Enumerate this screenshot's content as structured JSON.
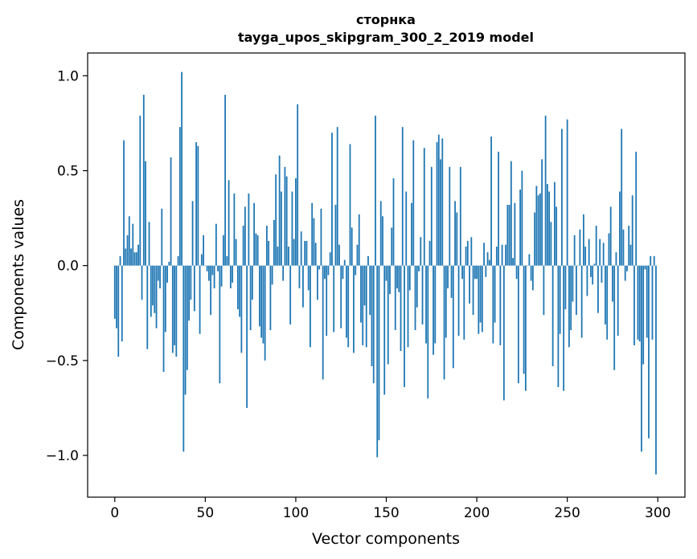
{
  "chart_data": {
    "type": "bar",
    "title_lines": [
      "сторнка",
      "tayga_upos_skipgram_300_2_2019 model"
    ],
    "xlabel": "Vector components",
    "ylabel": "Components values",
    "xlim": [
      -15,
      315
    ],
    "ylim": [
      -1.22,
      1.12
    ],
    "xticks": [
      0,
      50,
      100,
      150,
      200,
      250,
      300
    ],
    "xtick_labels": [
      "0",
      "50",
      "100",
      "150",
      "200",
      "250",
      "300"
    ],
    "yticks": [
      1.0,
      0.5,
      0.0,
      -0.5,
      -1.0
    ],
    "ytick_labels": [
      "1.0",
      "0.5",
      "0.0",
      "−0.5",
      "−1.0"
    ],
    "bar_color": "#1f77b4",
    "values": [
      -0.28,
      -0.33,
      -0.48,
      0.05,
      -0.4,
      0.66,
      0.09,
      0.16,
      0.26,
      0.09,
      0.22,
      0.07,
      0.07,
      0.11,
      0.79,
      -0.18,
      0.9,
      0.55,
      -0.44,
      0.23,
      -0.27,
      -0.21,
      -0.25,
      -0.33,
      -0.08,
      -0.12,
      0.3,
      -0.56,
      -0.35,
      -0.09,
      0.02,
      0.57,
      -0.46,
      -0.42,
      -0.48,
      0.05,
      0.73,
      1.02,
      -0.98,
      -0.68,
      -0.55,
      -0.29,
      -0.18,
      0.34,
      -0.24,
      0.65,
      0.63,
      -0.36,
      0.06,
      0.16,
      0.0,
      -0.03,
      -0.08,
      -0.26,
      -0.05,
      -0.12,
      0.22,
      -0.03,
      -0.62,
      -0.11,
      0.16,
      0.9,
      0.05,
      0.45,
      -0.12,
      -0.09,
      0.38,
      0.14,
      -0.23,
      -0.27,
      -0.46,
      0.21,
      0.31,
      -0.75,
      0.38,
      -0.34,
      -0.18,
      0.33,
      0.17,
      0.16,
      -0.32,
      -0.38,
      -0.41,
      -0.5,
      0.21,
      0.13,
      -0.34,
      -0.1,
      0.24,
      0.48,
      0.1,
      0.58,
      0.39,
      -0.08,
      0.52,
      0.47,
      0.1,
      -0.31,
      0.39,
      0.14,
      0.46,
      0.85,
      -0.12,
      0.18,
      -0.22,
      0.13,
      0.13,
      -0.13,
      -0.43,
      0.33,
      0.25,
      0.12,
      -0.18,
      -0.02,
      0.3,
      -0.6,
      -0.07,
      -0.37,
      -0.05,
      0.07,
      0.7,
      -0.35,
      0.32,
      0.73,
      0.11,
      -0.33,
      -0.07,
      0.03,
      -0.38,
      -0.43,
      0.64,
      0.2,
      -0.46,
      -0.05,
      0.11,
      0.27,
      -0.3,
      -0.42,
      -0.21,
      -0.43,
      0.05,
      -0.26,
      -0.53,
      -0.62,
      0.79,
      -1.01,
      -0.92,
      0.34,
      0.26,
      -0.68,
      -0.08,
      -0.52,
      -0.15,
      0.2,
      0.46,
      -0.34,
      -0.12,
      -0.14,
      -0.45,
      0.73,
      -0.64,
      0.39,
      -0.43,
      -0.13,
      0.33,
      0.66,
      -0.34,
      -0.22,
      -0.03,
      0.15,
      -0.31,
      0.62,
      -0.41,
      -0.7,
      0.13,
      0.52,
      -0.47,
      -0.41,
      0.65,
      0.69,
      0.56,
      0.67,
      -0.6,
      -0.38,
      -0.12,
      0.52,
      -0.17,
      -0.54,
      0.34,
      0.28,
      -0.37,
      0.52,
      -0.07,
      -0.39,
      0.1,
      0.13,
      -0.2,
      0.15,
      -0.26,
      -0.07,
      -0.07,
      -0.36,
      -0.3,
      -0.35,
      0.12,
      -0.06,
      0.07,
      0.03,
      0.68,
      -0.41,
      -0.3,
      0.1,
      0.6,
      -0.42,
      0.11,
      -0.71,
      0.11,
      0.32,
      0.32,
      0.55,
      0.04,
      0.33,
      -0.07,
      -0.62,
      0.4,
      0.5,
      -0.57,
      -0.66,
      0.0,
      0.06,
      -0.08,
      -0.13,
      0.28,
      0.42,
      0.37,
      0.38,
      0.56,
      -0.26,
      0.79,
      0.43,
      0.39,
      0.23,
      -0.53,
      0.44,
      0.31,
      -0.64,
      -0.36,
      0.72,
      -0.66,
      -0.23,
      0.77,
      -0.43,
      -0.34,
      -0.19,
      0.16,
      -0.26,
      0.0,
      0.19,
      -0.38,
      0.27,
      0.1,
      -0.16,
      0.14,
      -0.06,
      -0.1,
      0.01,
      0.21,
      -0.25,
      0.14,
      -0.09,
      0.12,
      -0.31,
      -0.39,
      0.17,
      0.31,
      -0.19,
      -0.55,
      0.07,
      -0.37,
      0.39,
      0.72,
      0.19,
      -0.08,
      -0.03,
      0.21,
      0.11,
      0.37,
      -0.42,
      0.6,
      -0.39,
      -0.4,
      -0.98,
      -0.52,
      -0.02,
      -0.38,
      -0.91,
      0.05,
      -0.39,
      0.05,
      -1.1
    ]
  }
}
